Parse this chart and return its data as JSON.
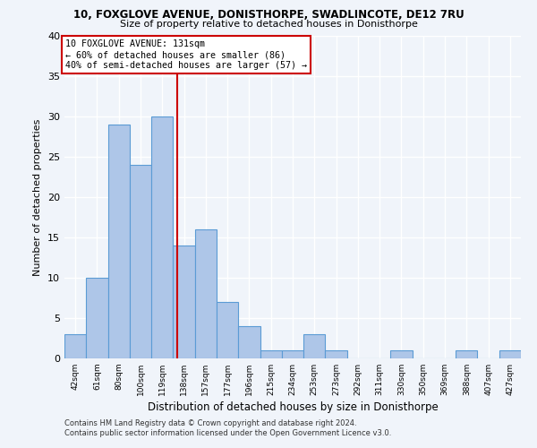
{
  "title": "10, FOXGLOVE AVENUE, DONISTHORPE, SWADLINCOTE, DE12 7RU",
  "subtitle": "Size of property relative to detached houses in Donisthorpe",
  "xlabel": "Distribution of detached houses by size in Donisthorpe",
  "ylabel": "Number of detached properties",
  "bin_labels": [
    "42sqm",
    "61sqm",
    "80sqm",
    "100sqm",
    "119sqm",
    "138sqm",
    "157sqm",
    "177sqm",
    "196sqm",
    "215sqm",
    "234sqm",
    "253sqm",
    "273sqm",
    "292sqm",
    "311sqm",
    "330sqm",
    "350sqm",
    "369sqm",
    "388sqm",
    "407sqm",
    "427sqm"
  ],
  "bin_centers": [
    0,
    1,
    2,
    3,
    4,
    5,
    6,
    7,
    8,
    9,
    10,
    11,
    12,
    13,
    14,
    15,
    16,
    17,
    18,
    19,
    20
  ],
  "counts": [
    3,
    10,
    29,
    24,
    30,
    14,
    16,
    7,
    4,
    1,
    1,
    3,
    1,
    0,
    0,
    1,
    0,
    0,
    1,
    0,
    1
  ],
  "bar_color": "#aec6e8",
  "bar_edge_color": "#5b9bd5",
  "vline_bin": 4.68,
  "vline_color": "#cc0000",
  "annotation_title": "10 FOXGLOVE AVENUE: 131sqm",
  "annotation_line1": "← 60% of detached houses are smaller (86)",
  "annotation_line2": "40% of semi-detached houses are larger (57) →",
  "annotation_box_color": "#ffffff",
  "annotation_box_edge_color": "#cc0000",
  "ylim": [
    0,
    40
  ],
  "yticks": [
    0,
    5,
    10,
    15,
    20,
    25,
    30,
    35,
    40
  ],
  "footer1": "Contains HM Land Registry data © Crown copyright and database right 2024.",
  "footer2": "Contains public sector information licensed under the Open Government Licence v3.0.",
  "background_color": "#f0f4fa",
  "grid_color": "#ffffff"
}
